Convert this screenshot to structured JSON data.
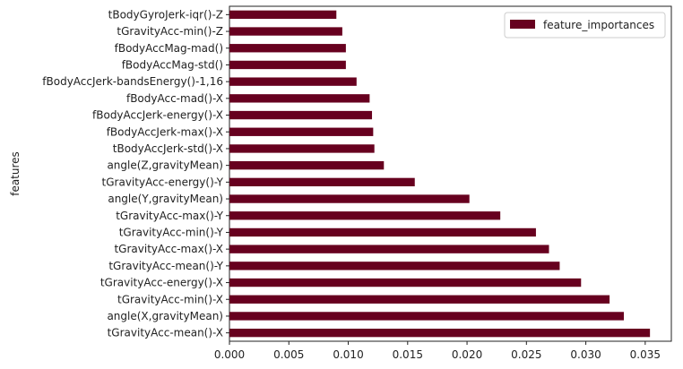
{
  "chart_data": {
    "type": "bar",
    "orientation": "horizontal",
    "ylabel": "features",
    "xlabel": "",
    "xlim": [
      0,
      0.0372
    ],
    "xticks": [
      "0.000",
      "0.005",
      "0.010",
      "0.015",
      "0.020",
      "0.025",
      "0.030",
      "0.035"
    ],
    "xtick_values": [
      0,
      0.005,
      0.01,
      0.015,
      0.02,
      0.025,
      0.03,
      0.035
    ],
    "legend": {
      "position": "top-right"
    },
    "colors": {
      "bar": "#67001f"
    },
    "categories": [
      "tGravityAcc-mean()-X",
      "angle(X,gravityMean)",
      "tGravityAcc-min()-X",
      "tGravityAcc-energy()-X",
      "tGravityAcc-mean()-Y",
      "tGravityAcc-max()-X",
      "tGravityAcc-min()-Y",
      "tGravityAcc-max()-Y",
      "angle(Y,gravityMean)",
      "tGravityAcc-energy()-Y",
      "angle(Z,gravityMean)",
      "tBodyAccJerk-std()-X",
      "fBodyAccJerk-max()-X",
      "fBodyAccJerk-energy()-X",
      "fBodyAcc-mad()-X",
      "fBodyAccJerk-bandsEnergy()-1,16",
      "fBodyAccMag-std()",
      "fBodyAccMag-mad()",
      "tGravityAcc-min()-Z",
      "tBodyGyroJerk-iqr()-Z"
    ],
    "series": [
      {
        "name": "feature_importances",
        "values": [
          0.0354,
          0.0332,
          0.032,
          0.0296,
          0.0278,
          0.0269,
          0.0258,
          0.0228,
          0.0202,
          0.0156,
          0.013,
          0.0122,
          0.0121,
          0.012,
          0.0118,
          0.0107,
          0.0098,
          0.0098,
          0.0095,
          0.009
        ]
      }
    ]
  }
}
